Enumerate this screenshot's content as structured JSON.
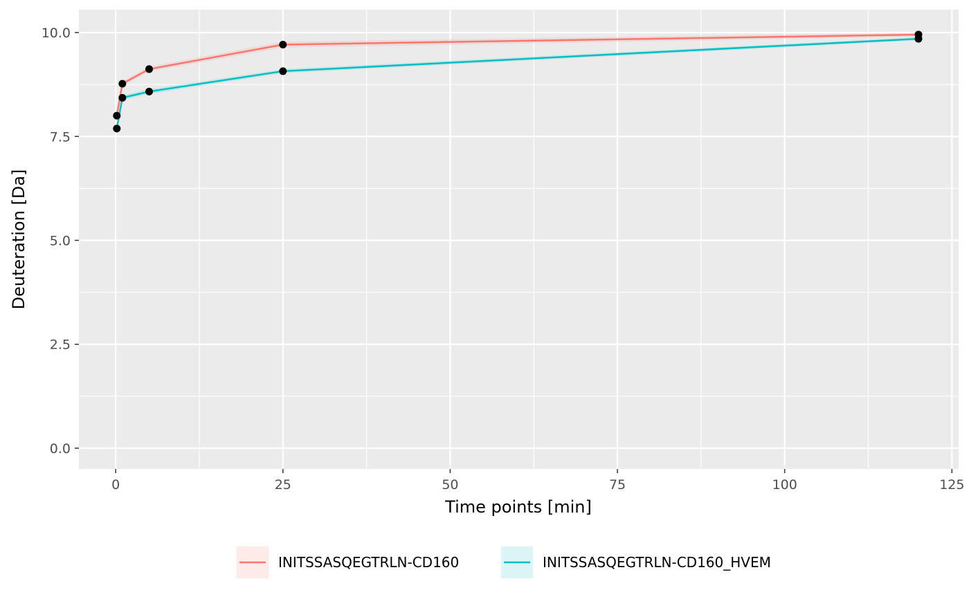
{
  "chart_data": {
    "type": "line",
    "title": "",
    "xlabel": "Time points [min]",
    "ylabel": "Deuteration [Da]",
    "xlim": [
      -5.5,
      126
    ],
    "ylim": [
      -0.5,
      10.55
    ],
    "xticks": [
      0,
      25,
      50,
      75,
      100,
      125
    ],
    "xtick_labels": [
      "0",
      "25",
      "50",
      "75",
      "100",
      "125"
    ],
    "yticks": [
      0,
      2.5,
      5,
      7.5,
      10
    ],
    "ytick_labels": [
      "0.0",
      "2.5",
      "5.0",
      "7.5",
      "10.0"
    ],
    "grid": true,
    "legend_position": "bottom",
    "series": [
      {
        "name": "INITSSASQEGTRLN-CD160",
        "color": "#F8766D",
        "x": [
          0.167,
          1,
          5,
          25,
          120
        ],
        "y": [
          8.0,
          8.77,
          9.12,
          9.71,
          9.95
        ],
        "err": [
          0.03,
          0.05,
          0.06,
          0.07,
          0.05
        ]
      },
      {
        "name": "INITSSASQEGTRLN-CD160_HVEM",
        "color": "#00BFC4",
        "x": [
          0.167,
          1,
          5,
          25,
          120
        ],
        "y": [
          7.69,
          8.43,
          8.58,
          9.07,
          9.85
        ],
        "err": [
          0.03,
          0.06,
          0.06,
          0.05,
          0.04
        ]
      }
    ]
  }
}
